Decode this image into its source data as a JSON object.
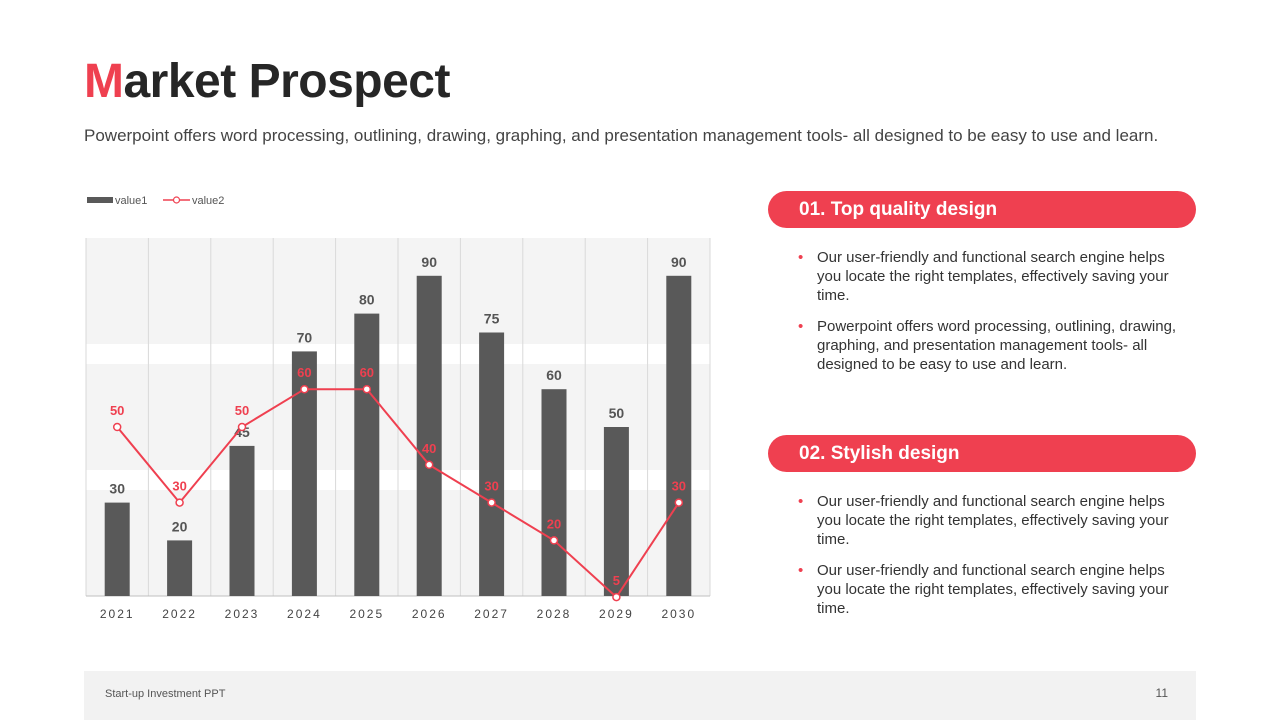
{
  "header": {
    "title_first": "M",
    "title_rest": "arket Prospect",
    "subtitle": "Powerpoint offers word processing, outlining, drawing, graphing, and presentation management tools- all designed to be easy to use and learn."
  },
  "colors": {
    "accent": "#ef4050",
    "bar": "#595959",
    "band_light": "#f4f4f4",
    "footer_bg": "#f2f2f2"
  },
  "chart_data": {
    "type": "bar",
    "categories": [
      "2021",
      "2022",
      "2023",
      "2024",
      "2025",
      "2026",
      "2027",
      "2028",
      "2029",
      "2030"
    ],
    "series": [
      {
        "name": "value1",
        "type": "bar",
        "color": "#595959",
        "values": [
          30,
          20,
          45,
          70,
          80,
          90,
          75,
          60,
          50,
          90
        ]
      },
      {
        "name": "value2",
        "type": "line",
        "color": "#ef4050",
        "values": [
          50,
          30,
          50,
          60,
          60,
          40,
          30,
          20,
          5,
          30
        ]
      }
    ],
    "ylim": [
      0,
      100
    ],
    "legend": "top-left",
    "grid": "vertical"
  },
  "sections": [
    {
      "label": "01. Top quality design",
      "bullets": [
        "Our user-friendly and functional search engine helps you locate the right templates, effectively saving your time.",
        "Powerpoint offers word processing, outlining, drawing, graphing, and presentation management tools- all designed to be easy to use and learn."
      ]
    },
    {
      "label": "02. Stylish design",
      "bullets": [
        "Our user-friendly and functional search engine helps you locate the right templates, effectively saving your time.",
        "Our user-friendly and functional search engine helps you locate the right templates, effectively saving your time."
      ]
    }
  ],
  "footer": {
    "text": "Start-up Investment PPT",
    "page_number": "11"
  }
}
